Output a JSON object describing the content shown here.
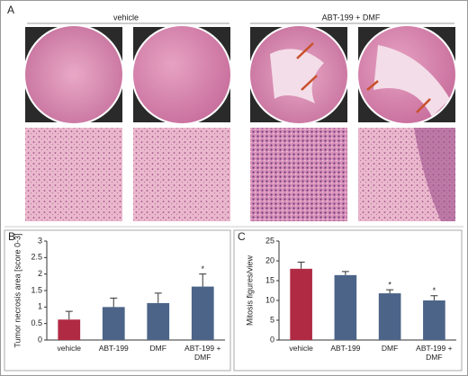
{
  "panel_a": {
    "panel_label": "A",
    "groups": [
      "vehicle",
      "ABT-199 + DMF"
    ]
  },
  "chart_data": [
    {
      "type": "bar",
      "panel_label": "B",
      "y_label": "Tumor necrosis area [score 0-3]",
      "categories": [
        "vehicle",
        "ABT-199",
        "DMF",
        "ABT-199 + DMF"
      ],
      "values": [
        0.62,
        1.0,
        1.12,
        1.62
      ],
      "errors": [
        0.25,
        0.27,
        0.3,
        0.38
      ],
      "significance": [
        null,
        null,
        null,
        "*"
      ],
      "colors": [
        "#b02a43",
        "#4c6488",
        "#4c6488",
        "#4c6488"
      ],
      "ylim": [
        0,
        3
      ],
      "yticks": [
        0,
        0.5,
        1,
        1.5,
        2,
        2.5,
        3
      ]
    },
    {
      "type": "bar",
      "panel_label": "C",
      "y_label": "Mitosis figures/view",
      "categories": [
        "vehicle",
        "ABT-199",
        "DMF",
        "ABT-199 + DMF"
      ],
      "values": [
        18,
        16.4,
        11.8,
        10
      ],
      "errors": [
        1.7,
        0.9,
        0.9,
        1.2
      ],
      "significance": [
        null,
        null,
        "*",
        "*"
      ],
      "colors": [
        "#b02a43",
        "#4c6488",
        "#4c6488",
        "#4c6488"
      ],
      "ylim": [
        0,
        25
      ],
      "yticks": [
        0,
        5,
        10,
        15,
        20,
        25
      ]
    }
  ]
}
